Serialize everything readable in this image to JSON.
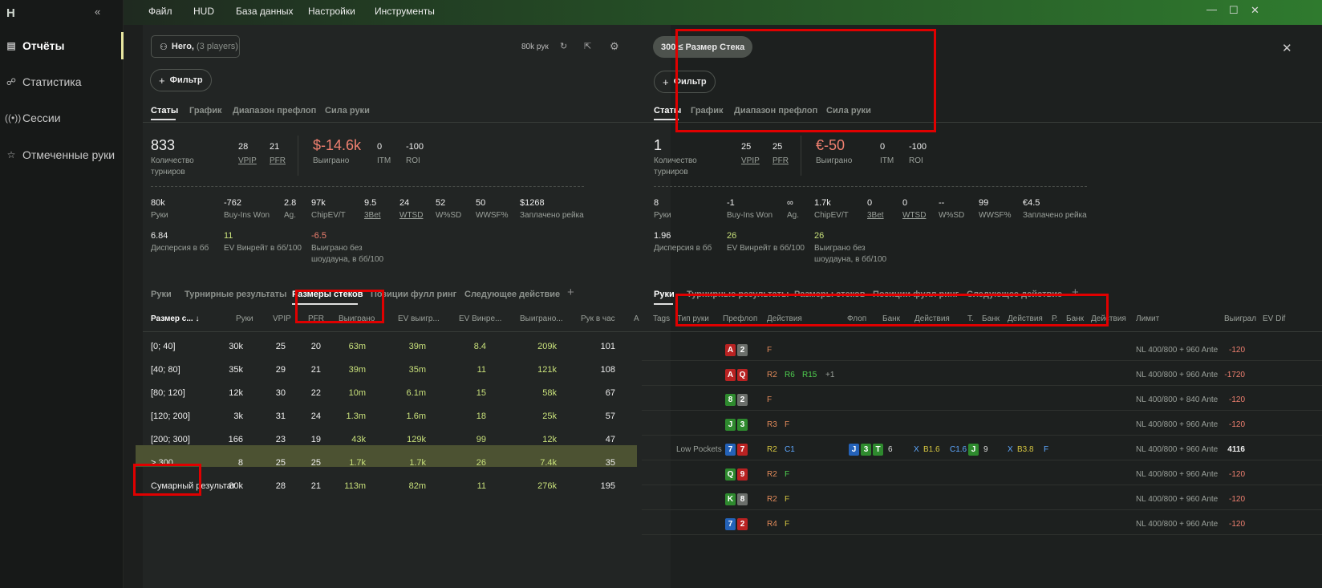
{
  "app": {
    "logo": "H",
    "collapse": "«"
  },
  "sidebar": {
    "items": [
      {
        "icon": "report-icon",
        "glyph": "▤",
        "label": "Отчёты"
      },
      {
        "icon": "graph-icon",
        "glyph": "☍",
        "label": "Статистика"
      },
      {
        "icon": "broadcast-icon",
        "glyph": "((•))",
        "label": "Сессии"
      },
      {
        "icon": "star-icon",
        "glyph": "☆",
        "label": "Отмеченные руки"
      }
    ]
  },
  "menu": [
    "Файл",
    "HUD",
    "База данных",
    "Настройки",
    "Инструменты"
  ],
  "window": {
    "minimize": "—",
    "maximize": "☐",
    "close": "✕"
  },
  "left": {
    "player_button": {
      "name": "Hero,",
      "count": "(3 players)"
    },
    "hands_count": "80k рук",
    "filter_label": "Фильтр",
    "tabs": [
      "Статы",
      "График",
      "Диапазон префлоп",
      "Сила руки"
    ],
    "summary": {
      "tournaments_value": "833",
      "tournaments_label": "Количество турниров",
      "vpip_value": "28",
      "vpip_label": "VPIP",
      "pfr_value": "21",
      "pfr_label": "PFR",
      "won_value": "$-14.6k",
      "won_label": "Выиграно",
      "itm_value": "0",
      "itm_label": "ITM",
      "roi_value": "-100",
      "roi_label": "ROI"
    },
    "stats_row1": [
      {
        "value": "80k",
        "label": "Руки",
        "u": false
      },
      {
        "value": "-762",
        "label": "Buy-Ins Won",
        "u": false
      },
      {
        "value": "2.8",
        "label": "Ag.",
        "u": false
      },
      {
        "value": "97k",
        "label": "ChipEV/T",
        "u": false
      },
      {
        "value": "9.5",
        "label": "3Bet",
        "u": true
      },
      {
        "value": "24",
        "label": "WTSD",
        "u": true
      },
      {
        "value": "52",
        "label": "W%SD",
        "u": false
      },
      {
        "value": "50",
        "label": "WWSF%",
        "u": false
      },
      {
        "value": "$1268",
        "label": "Заплачено рейка",
        "u": false
      }
    ],
    "stats_row2": [
      {
        "value": "6.84",
        "label": "Дисперсия в бб",
        "tone": "w"
      },
      {
        "value": "11",
        "label": "EV Винрейт в бб/100",
        "tone": "g"
      },
      {
        "value": "-6.5",
        "label": "Выиграно без шоудауна, в бб/100",
        "tone": "r"
      }
    ],
    "report_tabs": [
      "Руки",
      "Турнирные результаты",
      "Размеры стеков",
      "Позиции фулл ринг",
      "Следующее действие"
    ],
    "add_tab": "+",
    "table": {
      "headers": [
        "Размер с...",
        "Руки",
        "VPIP",
        "PFR",
        "Выиграно",
        "EV выигр...",
        "EV Винре...",
        "Выиграно...",
        "Рук в час",
        "А"
      ],
      "sort_arrow": "↓",
      "rows": [
        [
          "[0; 40]",
          "30k",
          "25",
          "20",
          "63m",
          "39m",
          "8.4",
          "209k",
          "101"
        ],
        [
          "[40; 80]",
          "35k",
          "29",
          "21",
          "39m",
          "35m",
          "11",
          "121k",
          "108"
        ],
        [
          "[80; 120]",
          "12k",
          "30",
          "22",
          "10m",
          "6.1m",
          "15",
          "58k",
          "67"
        ],
        [
          "[120; 200]",
          "3k",
          "31",
          "24",
          "1.3m",
          "1.6m",
          "18",
          "25k",
          "57"
        ],
        [
          "[200; 300]",
          "166",
          "23",
          "19",
          "43k",
          "129k",
          "99",
          "12k",
          "47"
        ],
        [
          "> 300",
          "8",
          "25",
          "25",
          "1.7k",
          "1.7k",
          "26",
          "7.4k",
          "35"
        ],
        [
          "Сумарный результат",
          "80k",
          "28",
          "21",
          "113m",
          "82m",
          "11",
          "276k",
          "195"
        ]
      ]
    }
  },
  "right": {
    "filter_chip": "300 ≤ Размер Стека",
    "filter_label": "Фильтр",
    "close": "✕",
    "tabs": [
      "Статы",
      "График",
      "Диапазон префлоп",
      "Сила руки"
    ],
    "summary": {
      "tournaments_value": "1",
      "tournaments_label": "Количество турниров",
      "vpip_value": "25",
      "vpip_label": "VPIP",
      "pfr_value": "25",
      "pfr_label": "PFR",
      "won_value": "€-50",
      "won_label": "Выиграно",
      "itm_value": "0",
      "itm_label": "ITM",
      "roi_value": "-100",
      "roi_label": "ROI"
    },
    "stats_row1": [
      {
        "value": "8",
        "label": "Руки",
        "u": false
      },
      {
        "value": "-1",
        "label": "Buy-Ins Won",
        "u": false
      },
      {
        "value": "∞",
        "label": "Ag.",
        "u": false
      },
      {
        "value": "1.7k",
        "label": "ChipEV/T",
        "u": false
      },
      {
        "value": "0",
        "label": "3Bet",
        "u": true
      },
      {
        "value": "0",
        "label": "WTSD",
        "u": true
      },
      {
        "value": "--",
        "label": "W%SD",
        "u": false
      },
      {
        "value": "99",
        "label": "WWSF%",
        "u": false
      },
      {
        "value": "€4.5",
        "label": "Заплачено рейка",
        "u": false
      }
    ],
    "stats_row2": [
      {
        "value": "1.96",
        "label": "Дисперсия в бб",
        "tone": "w"
      },
      {
        "value": "26",
        "label": "EV Винрейт в бб/100",
        "tone": "g"
      },
      {
        "value": "26",
        "label": "Выиграно без шоудауна, в бб/100",
        "tone": "g"
      }
    ],
    "report_tabs": [
      "Руки",
      "Турнирные результаты",
      "Размеры стеков",
      "Позиции фулл ринг",
      "Следующее действие"
    ],
    "add_tab": "+",
    "hands_headers": [
      "Tags",
      "Тип руки",
      "Префлоп",
      "Действия",
      "Флоп",
      "Банк",
      "Действия",
      "Т.",
      "Банк",
      "Действия",
      "Р.",
      "Банк",
      "Действия",
      "Лимит",
      "Выиграл",
      "EV Dif"
    ],
    "hands": [
      {
        "type": "",
        "cards": [
          [
            "A",
            "cr"
          ],
          [
            "2",
            "cg"
          ]
        ],
        "pre": [
          [
            "F",
            "o"
          ]
        ],
        "flop": [],
        "flop_act": [],
        "turn": [],
        "turn_act": [],
        "limit": "NL 400/800 + 960 Ante",
        "won": "-120"
      },
      {
        "type": "",
        "cards": [
          [
            "A",
            "cr"
          ],
          [
            "Q",
            "cr"
          ]
        ],
        "pre": [
          [
            "R2",
            "o"
          ],
          [
            "R6",
            "gn"
          ],
          [
            "R15",
            "gn"
          ],
          [
            "+1",
            "gy"
          ]
        ],
        "flop": [],
        "flop_act": [],
        "turn": [],
        "turn_act": [],
        "limit": "NL 400/800 + 960 Ante",
        "won": "-1720"
      },
      {
        "type": "",
        "cards": [
          [
            "8",
            "cgr"
          ],
          [
            "2",
            "cg"
          ]
        ],
        "pre": [
          [
            "F",
            "o"
          ]
        ],
        "flop": [],
        "flop_act": [],
        "turn": [],
        "turn_act": [],
        "limit": "NL 400/800 + 840 Ante",
        "won": "-120"
      },
      {
        "type": "",
        "cards": [
          [
            "J",
            "cgr"
          ],
          [
            "3",
            "cgr"
          ]
        ],
        "pre": [
          [
            "R3",
            "o"
          ],
          [
            "F",
            "o"
          ]
        ],
        "flop": [],
        "flop_act": [],
        "turn": [],
        "turn_act": [],
        "limit": "NL 400/800 + 960 Ante",
        "won": "-120"
      },
      {
        "type": "Low Pockets",
        "cards": [
          [
            "7",
            "cb"
          ],
          [
            "7",
            "cr"
          ]
        ],
        "pre": [
          [
            "R2",
            "y"
          ],
          [
            "C1",
            "bl"
          ]
        ],
        "flop": [
          [
            "J",
            "cb"
          ],
          [
            "3",
            "cgr"
          ],
          [
            "T",
            "cgr"
          ]
        ],
        "flop_pot": "6",
        "flop_act": [
          [
            "X",
            "bl"
          ],
          [
            "B1.6",
            "y"
          ],
          [
            "C1.6",
            "bl"
          ]
        ],
        "turn": [
          [
            "J",
            "cgr"
          ]
        ],
        "turn_pot": "9",
        "turn_act": [
          [
            "X",
            "bl"
          ],
          [
            "B3.8",
            "y"
          ],
          [
            "F",
            "bl"
          ]
        ],
        "limit": "NL 400/800 + 960 Ante",
        "won": "4116"
      },
      {
        "type": "",
        "cards": [
          [
            "Q",
            "cgr"
          ],
          [
            "9",
            "cr"
          ]
        ],
        "pre": [
          [
            "R2",
            "o"
          ],
          [
            "F",
            "gn"
          ]
        ],
        "flop": [],
        "flop_act": [],
        "turn": [],
        "turn_act": [],
        "limit": "NL 400/800 + 960 Ante",
        "won": "-120"
      },
      {
        "type": "",
        "cards": [
          [
            "K",
            "cgr"
          ],
          [
            "8",
            "cg"
          ]
        ],
        "pre": [
          [
            "R2",
            "o"
          ],
          [
            "F",
            "y"
          ]
        ],
        "flop": [],
        "flop_act": [],
        "turn": [],
        "turn_act": [],
        "limit": "NL 400/800 + 960 Ante",
        "won": "-120"
      },
      {
        "type": "",
        "cards": [
          [
            "7",
            "cb"
          ],
          [
            "2",
            "cr"
          ]
        ],
        "pre": [
          [
            "R4",
            "o"
          ],
          [
            "F",
            "y"
          ]
        ],
        "flop": [],
        "flop_act": [],
        "turn": [],
        "turn_act": [],
        "limit": "NL 400/800 + 960 Ante",
        "won": "-120"
      }
    ]
  }
}
